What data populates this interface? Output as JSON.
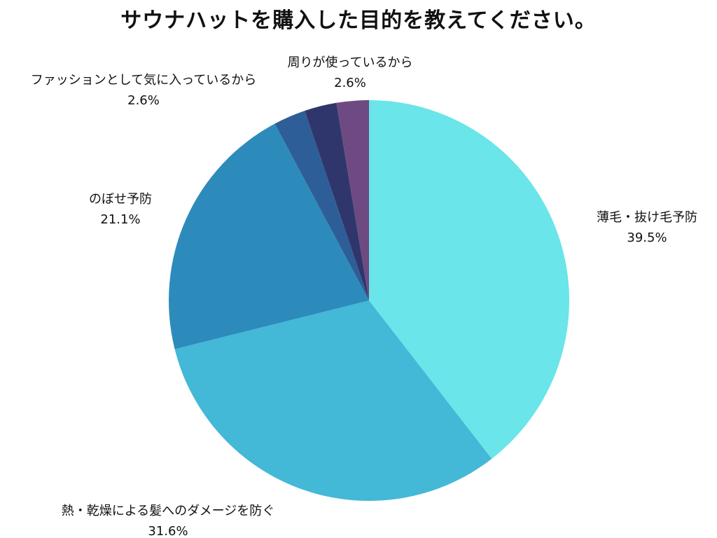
{
  "chart_data": {
    "type": "pie",
    "title": "サウナハットを購入した目的を教えてください。",
    "slices": [
      {
        "label": "薄毛・抜け毛予防",
        "value": 39.5,
        "display": "39.5%",
        "color": "#6ae5e9"
      },
      {
        "label": "熱・乾燥による髪へのダメージを防ぐ",
        "value": 31.6,
        "display": "31.6%",
        "color": "#43b8d7"
      },
      {
        "label": "のぼせ予防",
        "value": 21.1,
        "display": "21.1%",
        "color": "#2d8bbb"
      },
      {
        "label": "ファッションとして気に入っているから",
        "value": 2.6,
        "display": "2.6%",
        "color": "#2e5e98"
      },
      {
        "label": "",
        "value": 2.6,
        "display": "",
        "color": "#2f366b"
      },
      {
        "label": "周りが使っているから",
        "value": 2.6,
        "display": "2.6%",
        "color": "#6e4a82"
      }
    ],
    "start": "12-o'clock",
    "direction": "clockwise",
    "legend": "none"
  }
}
